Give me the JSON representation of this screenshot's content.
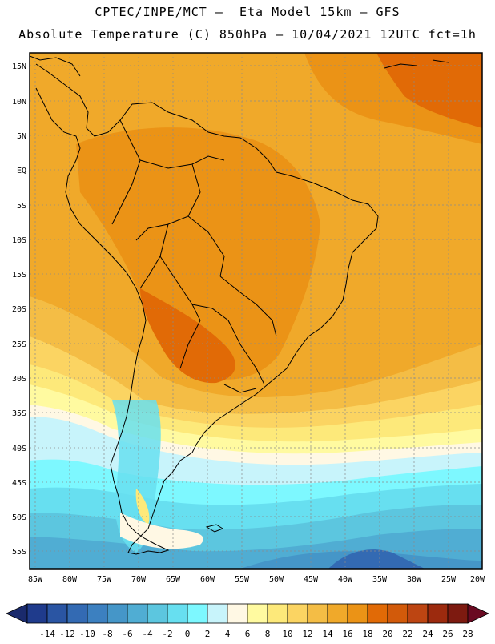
{
  "header": {
    "line1": "CPTEC/INPE/MCT –  Eta Model 15km – GFS",
    "line2": "Absolute Temperature (C) 850hPa – 10/04/2021 12UTC fct=1h"
  },
  "map": {
    "lat_labels": [
      "15N",
      "10N",
      "5N",
      "EQ",
      "5S",
      "10S",
      "15S",
      "20S",
      "25S",
      "30S",
      "35S",
      "40S",
      "45S",
      "50S",
      "55S"
    ],
    "lon_labels": [
      "85W",
      "80W",
      "75W",
      "70W",
      "65W",
      "60W",
      "55W",
      "50W",
      "45W",
      "40W",
      "35W",
      "30W",
      "25W",
      "20W"
    ]
  },
  "colorbar": {
    "labels": [
      "-14",
      "-12",
      "-10",
      "-8",
      "-6",
      "-4",
      "-2",
      "0",
      "2",
      "4",
      "6",
      "8",
      "10",
      "12",
      "14",
      "16",
      "18",
      "20",
      "22",
      "24",
      "26",
      "28"
    ],
    "colors": [
      "#1f3b8c",
      "#2a55a3",
      "#336ab3",
      "#3c80c0",
      "#4596c8",
      "#50add3",
      "#5cc6df",
      "#67dff0",
      "#7df8ff",
      "#c8f4fb",
      "#fff8e4",
      "#fffaa0",
      "#fde97a",
      "#fbd462",
      "#f4bd45",
      "#f0a92a",
      "#eb9316",
      "#e16a06",
      "#d25a0a",
      "#bd4512",
      "#9c2a0e",
      "#7d1a10"
    ],
    "low_arrow_color": "#1a2a6c",
    "high_arrow_color": "#6a0a22"
  }
}
